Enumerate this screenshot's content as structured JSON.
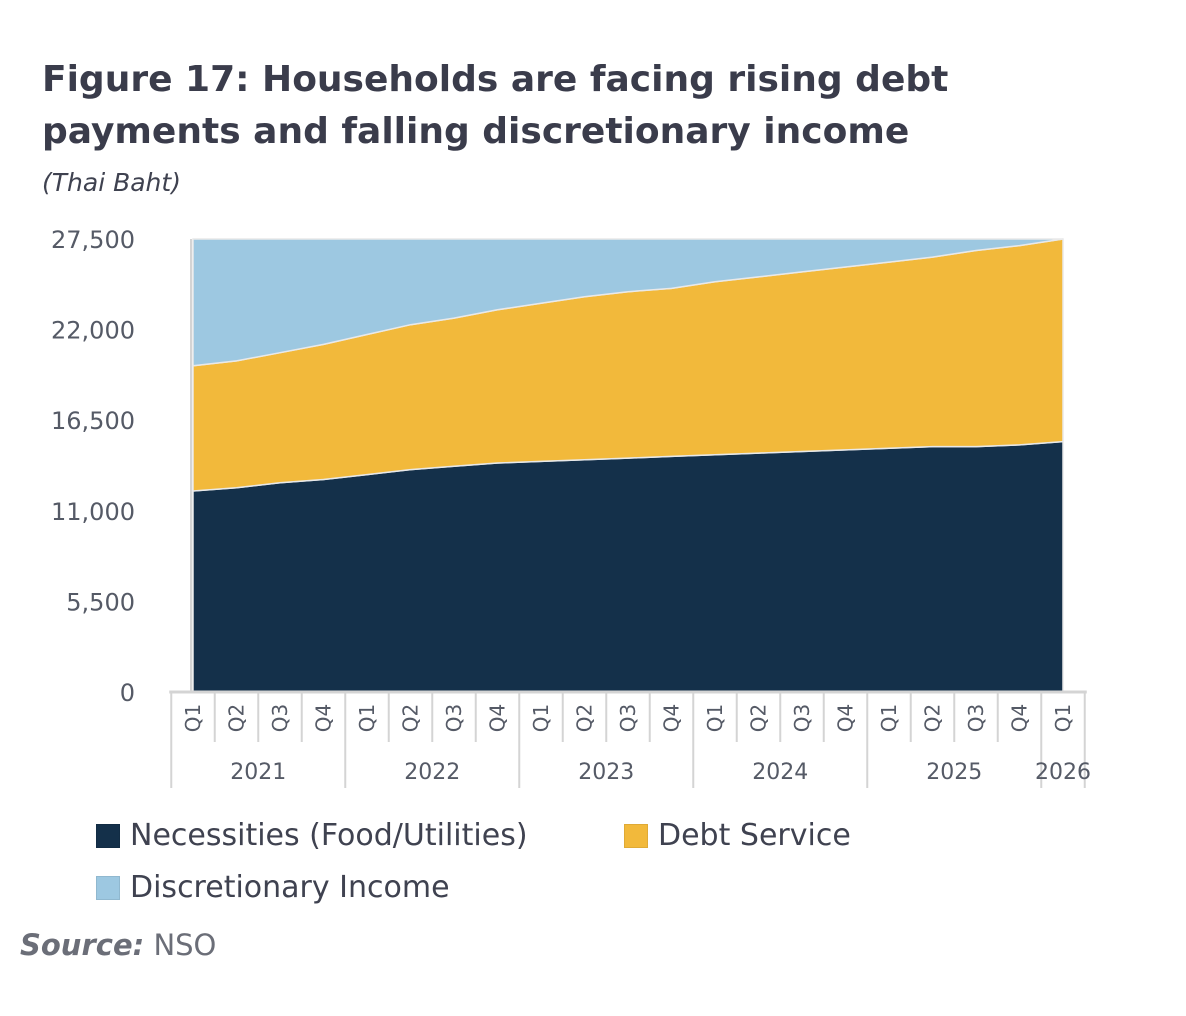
{
  "header": {
    "title": "Figure 17: Households are facing rising debt payments and falling discretionary income",
    "subtitle": "(Thai Baht)"
  },
  "source": {
    "label": "Source:",
    "value": "NSO"
  },
  "colors": {
    "necessities": "#14304a",
    "debt_service": "#f2b93b",
    "discretionary": "#9dc8e1",
    "axis": "#d4d4d4"
  },
  "chart_data": {
    "type": "area",
    "stacked": true,
    "title": "Figure 17: Households are facing rising debt payments and falling discretionary income",
    "subtitle": "(Thai Baht)",
    "xlabel": "",
    "ylabel": "",
    "ylim": [
      0,
      27500
    ],
    "yticks": [
      "0",
      "5,500",
      "11,000",
      "16,500",
      "22,000",
      "27,500"
    ],
    "x_years": [
      {
        "label": "2021",
        "quarters": 4
      },
      {
        "label": "2022",
        "quarters": 4
      },
      {
        "label": "2023",
        "quarters": 4
      },
      {
        "label": "2024",
        "quarters": 4
      },
      {
        "label": "2025",
        "quarters": 4
      },
      {
        "label": "2026",
        "quarters": 1
      }
    ],
    "categories": [
      "Q1",
      "Q2",
      "Q3",
      "Q4",
      "Q1",
      "Q2",
      "Q3",
      "Q4",
      "Q1",
      "Q2",
      "Q3",
      "Q4",
      "Q1",
      "Q2",
      "Q3",
      "Q4",
      "Q1",
      "Q2",
      "Q3",
      "Q4",
      "Q1"
    ],
    "legend_position": "bottom",
    "grid": false,
    "series": [
      {
        "name": "Necessities (Food/Utilities)",
        "values": [
          12200,
          12400,
          12700,
          12900,
          13200,
          13500,
          13700,
          13900,
          14000,
          14100,
          14200,
          14300,
          14400,
          14500,
          14600,
          14700,
          14800,
          14900,
          14900,
          15000,
          15200
        ]
      },
      {
        "name": "Debt Service",
        "values": [
          7600,
          7700,
          7900,
          8200,
          8500,
          8800,
          9000,
          9300,
          9600,
          9900,
          10100,
          10200,
          10500,
          10700,
          10900,
          11100,
          11300,
          11500,
          11900,
          12100,
          12300
        ]
      },
      {
        "name": "Discretionary Income",
        "values": [
          7700,
          7400,
          6900,
          6400,
          5800,
          5200,
          4800,
          4300,
          3900,
          3500,
          3200,
          3000,
          2600,
          2300,
          2000,
          1700,
          1400,
          1100,
          700,
          400,
          0
        ]
      }
    ]
  }
}
